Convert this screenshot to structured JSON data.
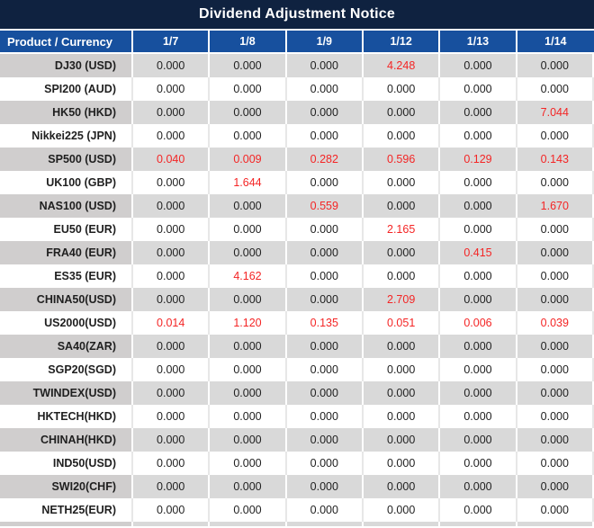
{
  "title": "Dividend Adjustment Notice",
  "colors": {
    "title_bg": "#0f2240",
    "header_bg": "#17509e",
    "row_gray": "#d9d9d9",
    "product_gray": "#d0cece",
    "text": "#1f1f1f",
    "red": "#f42525",
    "white_sep": "#e7e7e7"
  },
  "chart_data": {
    "type": "table",
    "title": "Dividend Adjustment Notice",
    "columns": [
      "Product / Currency",
      "1/7",
      "1/8",
      "1/9",
      "1/12",
      "1/13",
      "1/14"
    ],
    "rows": [
      {
        "product": "DJ30 (USD)",
        "values": [
          "0.000",
          "0.000",
          "0.000",
          "4.248",
          "0.000",
          "0.000"
        ],
        "red": [
          false,
          false,
          false,
          true,
          false,
          false
        ]
      },
      {
        "product": "SPI200 (AUD)",
        "values": [
          "0.000",
          "0.000",
          "0.000",
          "0.000",
          "0.000",
          "0.000"
        ],
        "red": [
          false,
          false,
          false,
          false,
          false,
          false
        ]
      },
      {
        "product": "HK50 (HKD)",
        "values": [
          "0.000",
          "0.000",
          "0.000",
          "0.000",
          "0.000",
          "7.044"
        ],
        "red": [
          false,
          false,
          false,
          false,
          false,
          true
        ]
      },
      {
        "product": "Nikkei225 (JPN)",
        "values": [
          "0.000",
          "0.000",
          "0.000",
          "0.000",
          "0.000",
          "0.000"
        ],
        "red": [
          false,
          false,
          false,
          false,
          false,
          false
        ]
      },
      {
        "product": "SP500 (USD)",
        "values": [
          "0.040",
          "0.009",
          "0.282",
          "0.596",
          "0.129",
          "0.143"
        ],
        "red": [
          true,
          true,
          true,
          true,
          true,
          true
        ]
      },
      {
        "product": "UK100 (GBP)",
        "values": [
          "0.000",
          "1.644",
          "0.000",
          "0.000",
          "0.000",
          "0.000"
        ],
        "red": [
          false,
          true,
          false,
          false,
          false,
          false
        ]
      },
      {
        "product": "NAS100 (USD)",
        "values": [
          "0.000",
          "0.000",
          "0.559",
          "0.000",
          "0.000",
          "1.670"
        ],
        "red": [
          false,
          false,
          true,
          false,
          false,
          true
        ]
      },
      {
        "product": "EU50 (EUR)",
        "values": [
          "0.000",
          "0.000",
          "0.000",
          "2.165",
          "0.000",
          "0.000"
        ],
        "red": [
          false,
          false,
          false,
          true,
          false,
          false
        ]
      },
      {
        "product": "FRA40 (EUR)",
        "values": [
          "0.000",
          "0.000",
          "0.000",
          "0.000",
          "0.415",
          "0.000"
        ],
        "red": [
          false,
          false,
          false,
          false,
          true,
          false
        ]
      },
      {
        "product": "ES35 (EUR)",
        "values": [
          "0.000",
          "4.162",
          "0.000",
          "0.000",
          "0.000",
          "0.000"
        ],
        "red": [
          false,
          true,
          false,
          false,
          false,
          false
        ]
      },
      {
        "product": "CHINA50(USD)",
        "values": [
          "0.000",
          "0.000",
          "0.000",
          "2.709",
          "0.000",
          "0.000"
        ],
        "red": [
          false,
          false,
          false,
          true,
          false,
          false
        ]
      },
      {
        "product": "US2000(USD)",
        "values": [
          "0.014",
          "1.120",
          "0.135",
          "0.051",
          "0.006",
          "0.039"
        ],
        "red": [
          true,
          true,
          true,
          true,
          true,
          true
        ]
      },
      {
        "product": "SA40(ZAR)",
        "values": [
          "0.000",
          "0.000",
          "0.000",
          "0.000",
          "0.000",
          "0.000"
        ],
        "red": [
          false,
          false,
          false,
          false,
          false,
          false
        ]
      },
      {
        "product": "SGP20(SGD)",
        "values": [
          "0.000",
          "0.000",
          "0.000",
          "0.000",
          "0.000",
          "0.000"
        ],
        "red": [
          false,
          false,
          false,
          false,
          false,
          false
        ]
      },
      {
        "product": "TWINDEX(USD)",
        "values": [
          "0.000",
          "0.000",
          "0.000",
          "0.000",
          "0.000",
          "0.000"
        ],
        "red": [
          false,
          false,
          false,
          false,
          false,
          false
        ]
      },
      {
        "product": "HKTECH(HKD)",
        "values": [
          "0.000",
          "0.000",
          "0.000",
          "0.000",
          "0.000",
          "0.000"
        ],
        "red": [
          false,
          false,
          false,
          false,
          false,
          false
        ]
      },
      {
        "product": "CHINAH(HKD)",
        "values": [
          "0.000",
          "0.000",
          "0.000",
          "0.000",
          "0.000",
          "0.000"
        ],
        "red": [
          false,
          false,
          false,
          false,
          false,
          false
        ]
      },
      {
        "product": "IND50(USD)",
        "values": [
          "0.000",
          "0.000",
          "0.000",
          "0.000",
          "0.000",
          "0.000"
        ],
        "red": [
          false,
          false,
          false,
          false,
          false,
          false
        ]
      },
      {
        "product": "SWI20(CHF)",
        "values": [
          "0.000",
          "0.000",
          "0.000",
          "0.000",
          "0.000",
          "0.000"
        ],
        "red": [
          false,
          false,
          false,
          false,
          false,
          false
        ]
      },
      {
        "product": "NETH25(EUR)",
        "values": [
          "0.000",
          "0.000",
          "0.000",
          "0.000",
          "0.000",
          "0.000"
        ],
        "red": [
          false,
          false,
          false,
          false,
          false,
          false
        ]
      }
    ]
  }
}
